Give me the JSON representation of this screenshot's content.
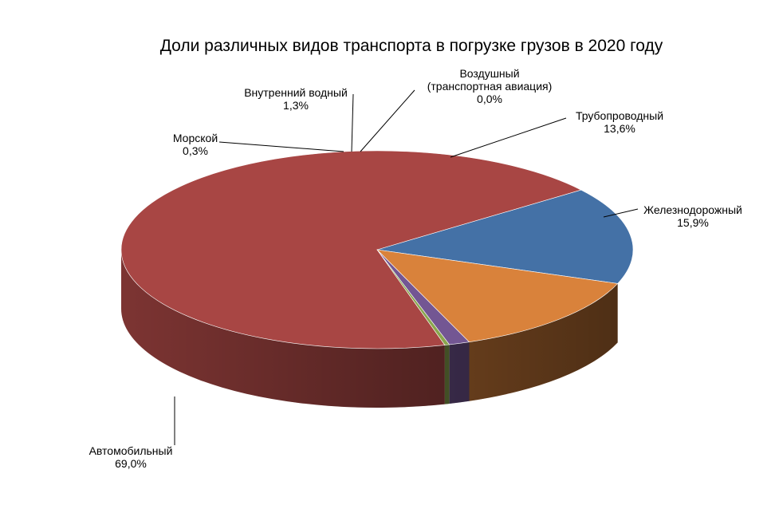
{
  "chart_data": {
    "type": "pie",
    "title": "Доли различных видов транспорта в погрузке грузов в 2020 году",
    "three_d": true,
    "legend": "none",
    "slices": [
      {
        "name": "Железнодорожный",
        "label_lines": [
          "Железнодорожный",
          "15,9%"
        ],
        "value": 15.9,
        "value_label": "15,9%",
        "color": "#4471a6"
      },
      {
        "name": "Автомобильный",
        "label_lines": [
          "Автомобильный",
          "69,0%"
        ],
        "value": 69.0,
        "value_label": "69,0%",
        "color": "#a84644"
      },
      {
        "name": "Морской",
        "label_lines": [
          "Морской",
          "0,3%"
        ],
        "value": 0.3,
        "value_label": "0,3%",
        "color": "#8aa64e"
      },
      {
        "name": "Внутренний водный",
        "label_lines": [
          "Внутренний  водный",
          "1,3%"
        ],
        "value": 1.3,
        "value_label": "1,3%",
        "color": "#735693"
      },
      {
        "name": "Воздушный (транспортная авиация)",
        "label_lines": [
          "Воздушный",
          "(транспортная  авиация)",
          "0,0%"
        ],
        "value": 0.0,
        "value_label": "0,0%",
        "color": "#3da0b8"
      },
      {
        "name": "Трубопроводный",
        "label_lines": [
          "Трубопроводный",
          "13,6%"
        ],
        "value": 13.6,
        "value_label": "13,6%",
        "color": "#d9823b"
      }
    ]
  }
}
